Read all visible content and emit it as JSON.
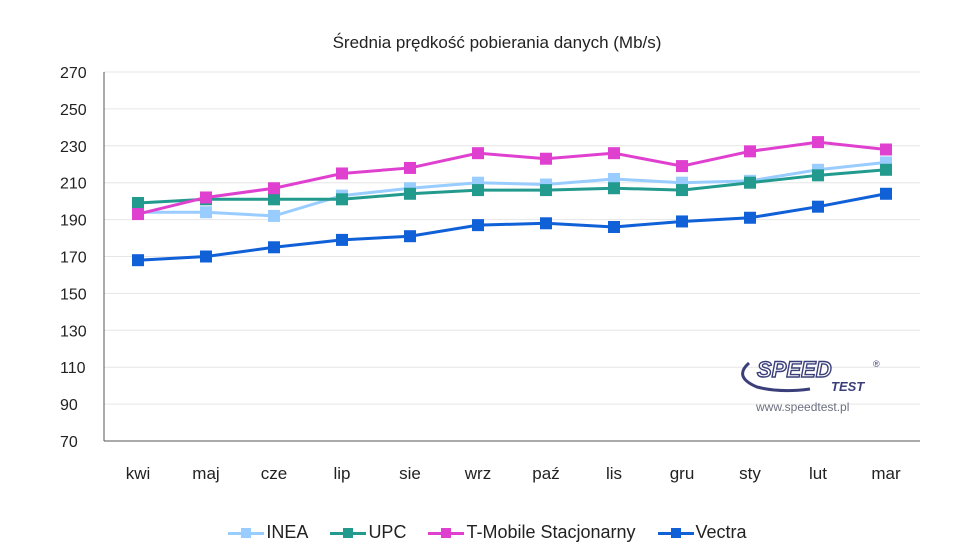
{
  "chart_data": {
    "type": "line",
    "title": "Średnia prędkość pobierania danych (Mb/s)",
    "xlabel": "",
    "ylabel": "",
    "ylim": [
      70,
      270
    ],
    "yticks": [
      70,
      90,
      110,
      130,
      150,
      170,
      190,
      210,
      230,
      250,
      270
    ],
    "grid": true,
    "legend_position": "bottom",
    "categories": [
      "kwi",
      "maj",
      "cze",
      "lip",
      "sie",
      "wrz",
      "paź",
      "lis",
      "gru",
      "sty",
      "lut",
      "mar"
    ],
    "series": [
      {
        "name": "INEA",
        "color": "#99ccff",
        "values": [
          194,
          194,
          192,
          203,
          207,
          210,
          209,
          212,
          210,
          211,
          217,
          221
        ]
      },
      {
        "name": "UPC",
        "color": "#239a8e",
        "values": [
          199,
          201,
          201,
          201,
          204,
          206,
          206,
          207,
          206,
          210,
          214,
          217
        ]
      },
      {
        "name": "T-Mobile Stacjonarny",
        "color": "#e040d0",
        "values": [
          193,
          202,
          207,
          215,
          218,
          226,
          223,
          226,
          219,
          227,
          232,
          228
        ]
      },
      {
        "name": "Vectra",
        "color": "#1060d8",
        "values": [
          168,
          170,
          175,
          179,
          181,
          187,
          188,
          186,
          189,
          191,
          197,
          204
        ]
      }
    ]
  },
  "watermark": {
    "logo_text": "SPEED",
    "logo_sub": "TEST",
    "registered": "®",
    "url": "www.speedtest.pl"
  }
}
